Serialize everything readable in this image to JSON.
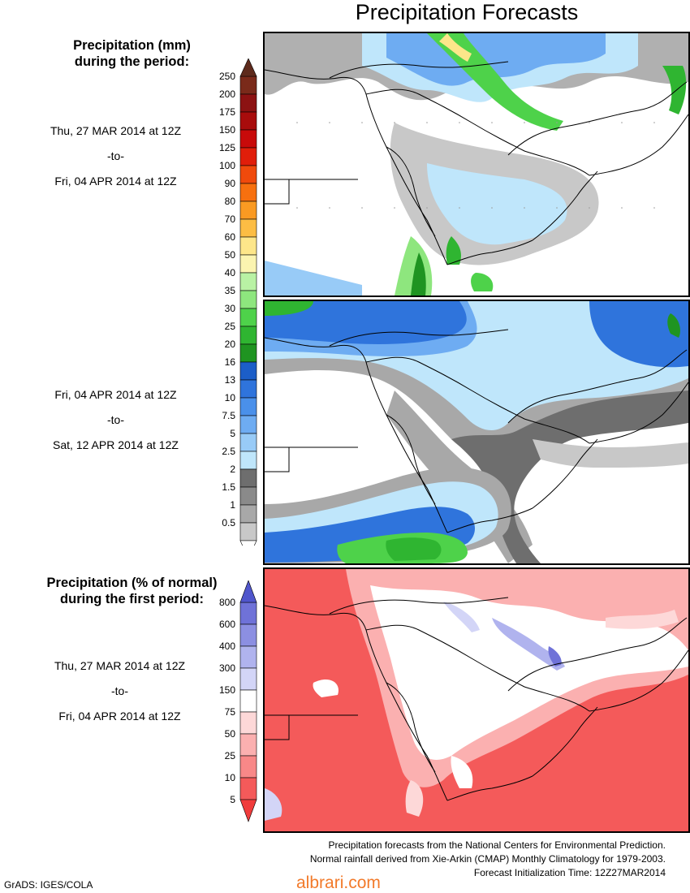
{
  "title": "Precipitation Forecasts",
  "precip_legend": {
    "heading_line1": "Precipitation (mm)",
    "heading_line2": "during the period:",
    "levels": [
      "250",
      "200",
      "175",
      "150",
      "125",
      "100",
      "90",
      "80",
      "70",
      "60",
      "50",
      "40",
      "35",
      "30",
      "25",
      "20",
      "16",
      "13",
      "10",
      "7.5",
      "5",
      "2.5",
      "2",
      "1.5",
      "1",
      "0.5"
    ],
    "colors": [
      "#7a2a1a",
      "#8c1212",
      "#a80c0c",
      "#c80a0a",
      "#e01e0a",
      "#f04a0c",
      "#f7700f",
      "#fa9a22",
      "#fcbd44",
      "#fde68a",
      "#fbf4b0",
      "#b9f2a4",
      "#8ee67e",
      "#4ed24a",
      "#2fb531",
      "#1f9421",
      "#1c5ec8",
      "#2f74dc",
      "#4a90ea",
      "#6eacf2",
      "#98cbf7",
      "#bfe6fb",
      "#6e6e6e",
      "#8a8a8a",
      "#a8a8a8",
      "#c8c8c8"
    ],
    "arrow_top_color": "#5e2a1c"
  },
  "period1": {
    "start": "Thu, 27 MAR 2014 at 12Z",
    "to": "-to-",
    "end": "Fri, 04 APR 2014 at 12Z"
  },
  "period2": {
    "start": "Fri, 04 APR 2014 at 12Z",
    "to": "-to-",
    "end": "Sat, 12 APR 2014 at 12Z"
  },
  "percent_legend": {
    "heading_line1": "Precipitation (% of normal)",
    "heading_line2": "during the first period:",
    "levels": [
      "800",
      "600",
      "400",
      "300",
      "150",
      "75",
      "50",
      "25",
      "10",
      "5"
    ],
    "colors": [
      "#6f72d8",
      "#8c8fe2",
      "#b0b3ee",
      "#d3d5f7",
      "#ffffff",
      "#fdd8d8",
      "#fbb0b0",
      "#f88888",
      "#f45a5a"
    ],
    "arrow_top_color": "#5056cc",
    "arrow_bottom_color": "#f03c3c"
  },
  "period3": {
    "start": "Thu, 27 MAR 2014 at 12Z",
    "to": "-to-",
    "end": "Fri, 04 APR 2014 at 12Z"
  },
  "footer": {
    "line1": "Precipitation forecasts from the National Centers for Environmental Prediction.",
    "line2": "Normal rainfall derived from Xie-Arkin (CMAP) Monthly Climatology for 1979-2003.",
    "line3": "Forecast Initialization Time: 12Z27MAR2014"
  },
  "credit": "GrADS: IGES/COLA",
  "watermark": "albrari.com"
}
